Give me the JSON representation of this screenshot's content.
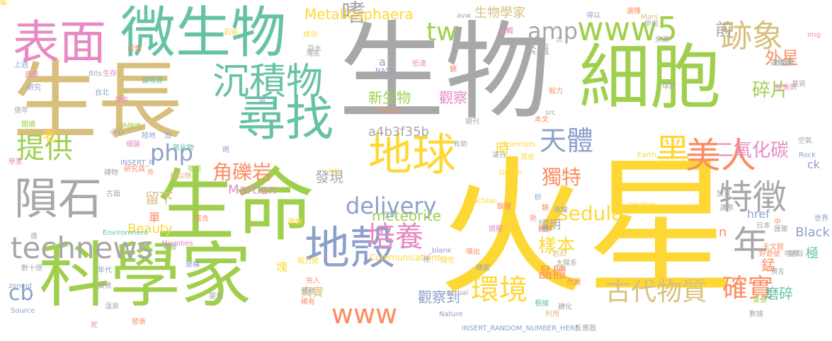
{
  "palette": {
    "green": "#a0cf4d",
    "grey": "#a8a8a8",
    "yellow": "#fdd835",
    "tan": "#d9bf7d",
    "teal": "#66c2a5",
    "pink": "#e78ac3",
    "orange": "#fc8d62",
    "blue": "#8da0cb"
  },
  "words": [
    {
      "text": "火星",
      "color": "#fdd835"
    },
    {
      "text": "生物",
      "color": "#a8a8a8"
    },
    {
      "text": "生長",
      "color": "#d9bf7d"
    },
    {
      "text": "細胞",
      "color": "#a0cf4d"
    },
    {
      "text": "生命",
      "color": "#a0cf4d"
    },
    {
      "text": "科學家",
      "color": "#a0cf4d"
    },
    {
      "text": "微生物",
      "color": "#66c2a5"
    },
    {
      "text": "表面",
      "color": "#e78ac3"
    },
    {
      "text": "尋找",
      "color": "#66c2a5"
    },
    {
      "text": "隕石",
      "color": "#a8a8a8"
    },
    {
      "text": "沉積物",
      "color": "#66c2a5"
    },
    {
      "text": "地球",
      "color": "#fdd835"
    },
    {
      "text": "地殼",
      "color": "#8da0cb"
    },
    {
      "text": "technews",
      "color": "#a8a8a8"
    },
    {
      "text": "美人",
      "color": "#fc8d62"
    },
    {
      "text": "黑",
      "color": "#fdd835"
    },
    {
      "text": "年",
      "color": "#a8a8a8"
    },
    {
      "text": "特徵",
      "color": "#a8a8a8"
    },
    {
      "text": "www5",
      "color": "#a0cf4d"
    },
    {
      "text": "跡象",
      "color": "#d9bf7d"
    },
    {
      "text": "提供",
      "color": "#a0cf4d"
    },
    {
      "text": "天體",
      "color": "#8da0cb"
    },
    {
      "text": "古代物質",
      "color": "#d9bf7d"
    },
    {
      "text": "確實",
      "color": "#fc8d62"
    },
    {
      "text": "環境",
      "color": "#fdd835"
    },
    {
      "text": "培養",
      "color": "#e78ac3"
    },
    {
      "text": "www",
      "color": "#fc8d62"
    },
    {
      "text": "delivery",
      "color": "#8da0cb"
    },
    {
      "text": "php",
      "color": "#8da0cb"
    },
    {
      "text": "tw",
      "color": "#a0cf4d"
    },
    {
      "text": "amp",
      "color": "#a8a8a8"
    },
    {
      "text": "嗜",
      "color": "#a8a8a8"
    },
    {
      "text": "cb",
      "color": "#8da0cb"
    },
    {
      "text": "角礫岩",
      "color": "#fc8d62"
    },
    {
      "text": "獨特",
      "color": "#fc8d62"
    },
    {
      "text": "二氧化碳",
      "color": "#e78ac3"
    },
    {
      "text": "碎片",
      "color": "#a0cf4d"
    },
    {
      "text": "sedula",
      "color": "#fdd835"
    },
    {
      "text": "樣本",
      "color": "#fdd835"
    },
    {
      "text": "前",
      "color": "#a8a8a8"
    },
    {
      "text": "外星",
      "color": "#fc8d62"
    },
    {
      "text": "a4b3f35b",
      "color": "#a8a8a8"
    },
    {
      "text": "Metallosphaera",
      "color": "#fdd835"
    },
    {
      "text": "新生物",
      "color": "#a0cf4d"
    },
    {
      "text": "觀察",
      "color": "#e78ac3"
    },
    {
      "text": "觀察到",
      "color": "#8da0cb"
    },
    {
      "text": "繁殖",
      "color": "#a8a8a8"
    },
    {
      "text": "生物學家",
      "color": "#d9bf7d"
    },
    {
      "text": "發現",
      "color": "#a8a8a8"
    },
    {
      "text": "留下",
      "color": "#d9bf7d"
    },
    {
      "text": "meteorite",
      "color": "#a0cf4d"
    },
    {
      "text": "Martian",
      "color": "#e78ac3"
    },
    {
      "text": "Beauty",
      "color": "#fdd835"
    },
    {
      "text": "時",
      "color": "#fdd835"
    },
    {
      "text": "老",
      "color": "#fdd835"
    },
    {
      "text": "晶體",
      "color": "#fc8d62"
    },
    {
      "text": "錳",
      "color": "#fc8d62"
    },
    {
      "text": "磨碎",
      "color": "#66c2a5"
    },
    {
      "text": "Black",
      "color": "#8da0cb"
    },
    {
      "text": "href",
      "color": "#8da0cb"
    },
    {
      "text": "ck",
      "color": "#8da0cb"
    },
    {
      "text": "n",
      "color": "#fc8d62"
    },
    {
      "text": "極",
      "color": "#66c2a5"
    },
    {
      "text": "證明",
      "color": "#a8a8a8"
    },
    {
      "text": "真實",
      "color": "#d9bf7d"
    },
    {
      "text": "a",
      "color": "#8da0cb"
    },
    {
      "text": "單",
      "color": "#fc8d62"
    },
    {
      "text": "塊",
      "color": "#fdd835"
    },
    {
      "text": "Communications",
      "color": "#fdd835"
    },
    {
      "text": "INSERT_RANDOM_NUMBER_HERE",
      "color": "#8da0cb"
    },
    {
      "text": "pixabay",
      "color": "#fdd835"
    },
    {
      "text": "Noachian",
      "color": "#fdd835"
    },
    {
      "text": "Grown",
      "color": "#fdd835"
    },
    {
      "text": "Actual",
      "color": "#a8a8a8"
    },
    {
      "text": "Nature",
      "color": "#8da0cb"
    },
    {
      "text": "Scientists",
      "color": "#fdd835"
    },
    {
      "text": "Earth",
      "color": "#fdd835"
    },
    {
      "text": "Rock",
      "color": "#8da0cb"
    },
    {
      "text": "Environment",
      "color": "#66c2a5"
    },
    {
      "text": "Microbes",
      "color": "#e78ac3"
    },
    {
      "text": "INSERT_R",
      "color": "#8da0cb"
    },
    {
      "text": "zoneid",
      "color": "#8da0cb"
    },
    {
      "text": "Source",
      "color": "#8da0cb"
    },
    {
      "text": "_blank",
      "color": "#8da0cb"
    },
    {
      "text": "target",
      "color": "#fc8d62"
    },
    {
      "text": "NASA",
      "color": "#8da0cb"
    },
    {
      "text": "Bits",
      "color": "#a8a8a8"
    },
    {
      "text": "src",
      "color": "#a8a8a8"
    },
    {
      "text": "Mars",
      "color": "#d9bf7d"
    },
    {
      "text": "img",
      "color": "#e78ac3"
    },
    {
      "text": "avw",
      "color": "#a8a8a8"
    },
    {
      "text": "數十億",
      "color": "#a8a8a8"
    },
    {
      "text": "氧化物",
      "color": "#66c2a5"
    },
    {
      "text": "研究員",
      "color": "#fc8d62"
    },
    {
      "text": "熱酸性",
      "color": "#a0cf4d"
    },
    {
      "text": "細菌",
      "color": "#e78ac3"
    },
    {
      "text": "礦物源",
      "color": "#66c2a5"
    },
    {
      "text": "高濃度",
      "color": "#a8a8a8"
    },
    {
      "text": "好奇號",
      "color": "#fc8d62"
    },
    {
      "text": "太陽系",
      "color": "#a8a8a8"
    },
    {
      "text": "反應器",
      "color": "#a8a8a8"
    },
    {
      "text": "天文館",
      "color": "#fc8d62"
    },
    {
      "text": "數百萬",
      "color": "#a8a8a8"
    },
    {
      "text": "探測到",
      "color": "#e78ac3"
    },
    {
      "text": "毅力號",
      "color": "#fdd835"
    },
    {
      "text": "相似物",
      "color": "#d9bf7d"
    },
    {
      "text": "火山",
      "color": "#fdd835"
    },
    {
      "text": "殖民",
      "color": "#a0cf4d"
    },
    {
      "text": "空氣",
      "color": "#a8a8a8"
    },
    {
      "text": "世界",
      "color": "#8da0cb"
    },
    {
      "text": "日本",
      "color": "#a8a8a8"
    },
    {
      "text": "結殼",
      "color": "#a8a8a8"
    },
    {
      "text": "預言",
      "color": "#a8a8a8"
    },
    {
      "text": "重疊",
      "color": "#a0cf4d"
    },
    {
      "text": "數據",
      "color": "#a8a8a8"
    },
    {
      "text": "成像",
      "color": "#fc8d62"
    },
    {
      "text": "石質",
      "color": "#fdd835"
    },
    {
      "text": "更多",
      "color": "#e78ac3"
    },
    {
      "text": "台北",
      "color": "#8da0cb"
    },
    {
      "text": "研究",
      "color": "#8da0cb"
    },
    {
      "text": "西席",
      "color": "#e78ac3"
    },
    {
      "text": "上週",
      "color": "#8da0cb"
    },
    {
      "text": "億年",
      "color": "#a8a8a8"
    },
    {
      "text": "閱讀",
      "color": "#a0cf4d"
    },
    {
      "text": "學家",
      "color": "#e78ac3"
    },
    {
      "text": "古面",
      "color": "#a8a8a8"
    },
    {
      "text": "磚物",
      "color": "#a8a8a8"
    },
    {
      "text": "小心",
      "color": "#8da0cb"
    },
    {
      "text": "陸地",
      "color": "#8da0cb"
    },
    {
      "text": "生存",
      "color": "#e78ac3"
    },
    {
      "text": "微鏡",
      "color": "#fdd835"
    },
    {
      "text": "富含",
      "color": "#fc8d62"
    },
    {
      "text": "氣層",
      "color": "#a8a8a8"
    },
    {
      "text": "建構",
      "color": "#8da0cb"
    },
    {
      "text": "年代",
      "color": "#8da0cb"
    },
    {
      "text": "寶貴",
      "color": "#a8a8a8"
    },
    {
      "text": "溫泉",
      "color": "#a8a8a8"
    },
    {
      "text": "發表",
      "color": "#fc8d62"
    },
    {
      "text": "稀有",
      "color": "#fc8d62"
    },
    {
      "text": "機會",
      "color": "#a8a8a8"
    },
    {
      "text": "充入",
      "color": "#fc8d62"
    },
    {
      "text": "酸性",
      "color": "#fdd835"
    },
    {
      "text": "轉載",
      "color": "#a8a8a8"
    },
    {
      "text": "根據",
      "color": "#66c2a5"
    },
    {
      "text": "轉化",
      "color": "#a8a8a8"
    },
    {
      "text": "利用",
      "color": "#d9bf7d"
    },
    {
      "text": "酸鹽",
      "color": "#fc8d62"
    },
    {
      "text": "微酸",
      "color": "#a8a8a8"
    },
    {
      "text": "延伸",
      "color": "#fc8d62"
    },
    {
      "text": "擠壓",
      "color": "#e78ac3"
    },
    {
      "text": "放置",
      "color": "#a8a8a8"
    },
    {
      "text": "西圖",
      "color": "#fc8d62"
    },
    {
      "text": "岩石",
      "color": "#d9bf7d"
    },
    {
      "text": "濃厚",
      "color": "#a8a8a8"
    },
    {
      "text": "號",
      "color": "#8da0cb"
    },
    {
      "text": "找到",
      "color": "#8da0cb"
    },
    {
      "text": "蝨水",
      "color": "#a8a8a8"
    },
    {
      "text": "成功",
      "color": "#fdd835"
    },
    {
      "text": "海底",
      "color": "#a8a8a8"
    },
    {
      "text": "抵達",
      "color": "#e78ac3"
    },
    {
      "text": "接觸",
      "color": "#e78ac3"
    },
    {
      "text": "太",
      "color": "#a8a8a8"
    },
    {
      "text": "甲烷",
      "color": "#a8a8a8"
    },
    {
      "text": "來源",
      "color": "#a8a8a8"
    },
    {
      "text": "得以",
      "color": "#8da0cb"
    },
    {
      "text": "選擇",
      "color": "#fc8d62"
    },
    {
      "text": "毅力",
      "color": "#fc8d62"
    },
    {
      "text": "球狀",
      "color": "#a8a8a8"
    },
    {
      "text": "基質",
      "color": "#a8a8a8"
    },
    {
      "text": "本文",
      "color": "#fc8d62"
    },
    {
      "text": "期刊",
      "color": "#a8a8a8"
    },
    {
      "text": "有助",
      "color": "#a8a8a8"
    },
    {
      "text": "濾谷",
      "color": "#a8a8a8"
    },
    {
      "text": "混合",
      "color": "#fdd835"
    },
    {
      "text": "噴出",
      "color": "#fc8d62"
    },
    {
      "text": "嬰兒",
      "color": "#a8a8a8"
    },
    {
      "text": "死",
      "color": "#e78ac3"
    },
    {
      "text": "歲",
      "color": "#a8a8a8"
    },
    {
      "text": "雨",
      "color": "#8da0cb"
    },
    {
      "text": "外",
      "color": "#fc8d62"
    },
    {
      "text": "加",
      "color": "#8da0cb"
    },
    {
      "text": "菌",
      "color": "#8da0cb"
    },
    {
      "text": "鏡",
      "color": "#fc8d62"
    },
    {
      "text": "裡",
      "color": "#a8a8a8"
    },
    {
      "text": "砂",
      "color": "#8da0cb"
    },
    {
      "text": "類",
      "color": "#fc8d62"
    },
    {
      "text": "熱",
      "color": "#fc8d62"
    },
    {
      "text": "中",
      "color": "#fc8d62"
    },
    {
      "text": "匯聚",
      "color": "#a8a8a8"
    },
    {
      "text": "嗜極",
      "color": "#a8a8a8"
    },
    {
      "text": "編",
      "color": "#fdd835"
    }
  ]
}
